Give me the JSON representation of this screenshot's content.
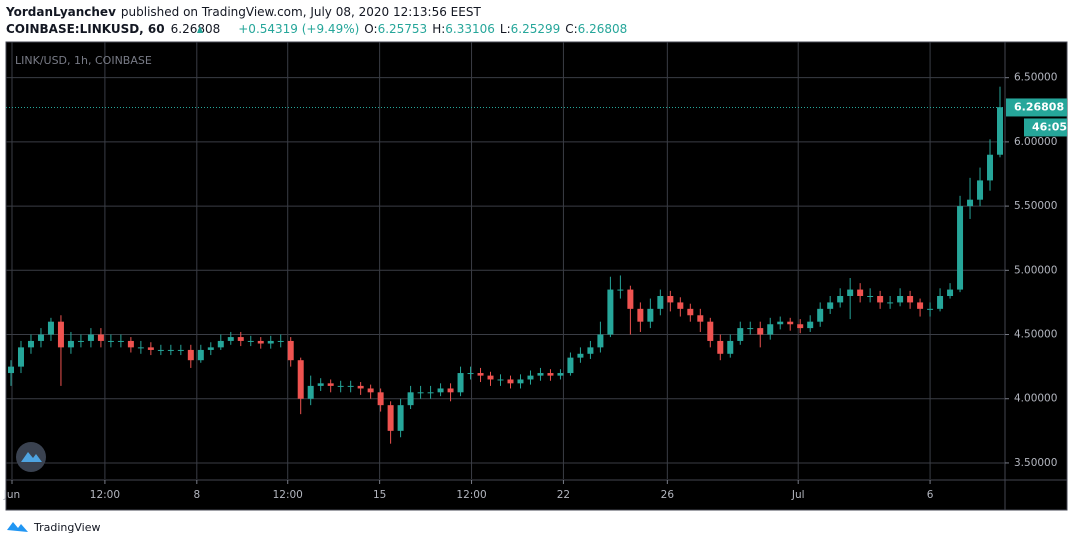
{
  "header": {
    "author": "YordanLyanchev",
    "published": "published on TradingView.com, July 08, 2020 12:13:56 EEST",
    "symbol": "COINBASE:LINKUSD, 60",
    "price": "6.26808",
    "change": "+0.54319 (+9.49%)",
    "ohlc": [
      {
        "label": "O:",
        "value": "6.25753"
      },
      {
        "label": "H:",
        "value": "6.33106"
      },
      {
        "label": "L:",
        "value": "6.25299"
      },
      {
        "label": "C:",
        "value": "6.26808"
      }
    ]
  },
  "footer": {
    "brand": "TradingView"
  },
  "chart_data": {
    "type": "candlestick",
    "title": "LINK/USD, 1h, COINBASE",
    "up_color": "#26a69a",
    "down_color": "#ef5350",
    "grid": true,
    "last_price": 6.26808,
    "countdown": "46:05",
    "xlim": [
      0,
      100
    ],
    "xticks": [
      {
        "value": 0.6,
        "label": "Jun"
      },
      {
        "value": 9.9,
        "label": "12:00"
      },
      {
        "value": 19.1,
        "label": "8"
      },
      {
        "value": 28.2,
        "label": "12:00"
      },
      {
        "value": 37.4,
        "label": "15"
      },
      {
        "value": 46.6,
        "label": "12:00"
      },
      {
        "value": 55.8,
        "label": "22"
      },
      {
        "value": 66.2,
        "label": "26"
      },
      {
        "value": 79.3,
        "label": "Jul"
      },
      {
        "value": 92.5,
        "label": "6"
      }
    ],
    "ylim": [
      3.375,
      6.77
    ],
    "yticks": [
      {
        "value": 3.5,
        "label": "3.50000"
      },
      {
        "value": 4,
        "label": "4.00000"
      },
      {
        "value": 4.5,
        "label": "4.50000"
      },
      {
        "value": 5,
        "label": "5.00000"
      },
      {
        "value": 5.5,
        "label": "5.50000"
      },
      {
        "value": 6,
        "label": "6.00000"
      },
      {
        "value": 6.5,
        "label": "6.50000"
      }
    ],
    "open": [
      4.2,
      4.25,
      4.4,
      4.45,
      4.5,
      4.6,
      4.4,
      4.45,
      4.45,
      4.5,
      4.45,
      4.45,
      4.45,
      4.4,
      4.4,
      4.38,
      4.38,
      4.38,
      4.38,
      4.3,
      4.38,
      4.4,
      4.45,
      4.48,
      4.45,
      4.45,
      4.43,
      4.45,
      4.45,
      4.3,
      4.0,
      4.1,
      4.12,
      4.1,
      4.1,
      4.1,
      4.08,
      4.05,
      3.95,
      3.75,
      3.95,
      4.05,
      4.05,
      4.05,
      4.08,
      4.05,
      4.2,
      4.2,
      4.18,
      4.15,
      4.15,
      4.12,
      4.15,
      4.18,
      4.2,
      4.18,
      4.2,
      4.32,
      4.35,
      4.4,
      4.5,
      4.85,
      4.85,
      4.7,
      4.6,
      4.7,
      4.8,
      4.75,
      4.7,
      4.65,
      4.6,
      4.45,
      4.35,
      4.45,
      4.55,
      4.55,
      4.5,
      4.58,
      4.6,
      4.58,
      4.55,
      4.6,
      4.7,
      4.75,
      4.8,
      4.85,
      4.8,
      4.8,
      4.75,
      4.75,
      4.8,
      4.75,
      4.7,
      4.7,
      4.8,
      4.85,
      5.5,
      5.55,
      5.7,
      5.9
    ],
    "high": [
      4.3,
      4.45,
      4.5,
      4.55,
      4.63,
      4.65,
      4.52,
      4.5,
      4.55,
      4.55,
      4.5,
      4.5,
      4.48,
      4.45,
      4.44,
      4.42,
      4.42,
      4.42,
      4.42,
      4.42,
      4.44,
      4.5,
      4.52,
      4.52,
      4.49,
      4.48,
      4.49,
      4.5,
      4.48,
      4.32,
      4.18,
      4.16,
      4.15,
      4.14,
      4.14,
      4.13,
      4.11,
      4.08,
      3.98,
      4.0,
      4.1,
      4.1,
      4.1,
      4.12,
      4.12,
      4.25,
      4.25,
      4.24,
      4.21,
      4.19,
      4.18,
      4.19,
      4.22,
      4.24,
      4.23,
      4.23,
      4.36,
      4.4,
      4.45,
      4.6,
      4.95,
      4.96,
      4.88,
      4.75,
      4.78,
      4.85,
      4.84,
      4.79,
      4.74,
      4.7,
      4.63,
      4.5,
      4.5,
      4.6,
      4.6,
      4.6,
      4.63,
      4.64,
      4.63,
      4.62,
      4.65,
      4.75,
      4.8,
      4.86,
      4.94,
      4.9,
      4.86,
      4.84,
      4.8,
      4.86,
      4.84,
      4.78,
      4.75,
      4.86,
      4.9,
      5.58,
      5.72,
      5.8,
      6.02,
      6.43
    ],
    "low": [
      4.1,
      4.2,
      4.35,
      4.4,
      4.45,
      4.1,
      4.35,
      4.4,
      4.4,
      4.4,
      4.4,
      4.4,
      4.36,
      4.35,
      4.34,
      4.34,
      4.34,
      4.34,
      4.24,
      4.28,
      4.34,
      4.38,
      4.42,
      4.41,
      4.41,
      4.39,
      4.39,
      4.4,
      4.25,
      3.88,
      3.95,
      4.06,
      4.05,
      4.05,
      4.05,
      4.03,
      4.0,
      3.9,
      3.65,
      3.7,
      3.92,
      4.0,
      4.0,
      4.02,
      3.98,
      4.02,
      4.15,
      4.13,
      4.1,
      4.1,
      4.08,
      4.08,
      4.11,
      4.14,
      4.14,
      4.15,
      4.18,
      4.28,
      4.31,
      4.36,
      4.48,
      4.78,
      4.5,
      4.52,
      4.55,
      4.65,
      4.68,
      4.64,
      4.6,
      4.52,
      4.4,
      4.3,
      4.32,
      4.42,
      4.5,
      4.4,
      4.46,
      4.54,
      4.53,
      4.51,
      4.52,
      4.56,
      4.66,
      4.71,
      4.62,
      4.75,
      4.75,
      4.7,
      4.7,
      4.72,
      4.7,
      4.64,
      4.64,
      4.68,
      4.78,
      4.83,
      5.4,
      5.5,
      5.62,
      5.88
    ],
    "close": [
      4.25,
      4.4,
      4.45,
      4.5,
      4.6,
      4.4,
      4.45,
      4.45,
      4.5,
      4.45,
      4.45,
      4.45,
      4.4,
      4.4,
      4.38,
      4.38,
      4.38,
      4.38,
      4.3,
      4.38,
      4.4,
      4.45,
      4.48,
      4.45,
      4.45,
      4.43,
      4.45,
      4.45,
      4.3,
      4.0,
      4.1,
      4.12,
      4.1,
      4.1,
      4.1,
      4.08,
      4.05,
      3.95,
      3.75,
      3.95,
      4.05,
      4.05,
      4.05,
      4.08,
      4.05,
      4.2,
      4.2,
      4.18,
      4.15,
      4.15,
      4.12,
      4.15,
      4.18,
      4.2,
      4.18,
      4.2,
      4.32,
      4.35,
      4.4,
      4.5,
      4.85,
      4.85,
      4.7,
      4.6,
      4.7,
      4.8,
      4.75,
      4.7,
      4.65,
      4.6,
      4.45,
      4.35,
      4.45,
      4.55,
      4.55,
      4.5,
      4.58,
      4.6,
      4.58,
      4.55,
      4.6,
      4.7,
      4.75,
      4.8,
      4.85,
      4.8,
      4.8,
      4.75,
      4.75,
      4.8,
      4.75,
      4.7,
      4.7,
      4.8,
      4.85,
      5.5,
      5.55,
      5.7,
      5.9,
      6.27
    ]
  }
}
